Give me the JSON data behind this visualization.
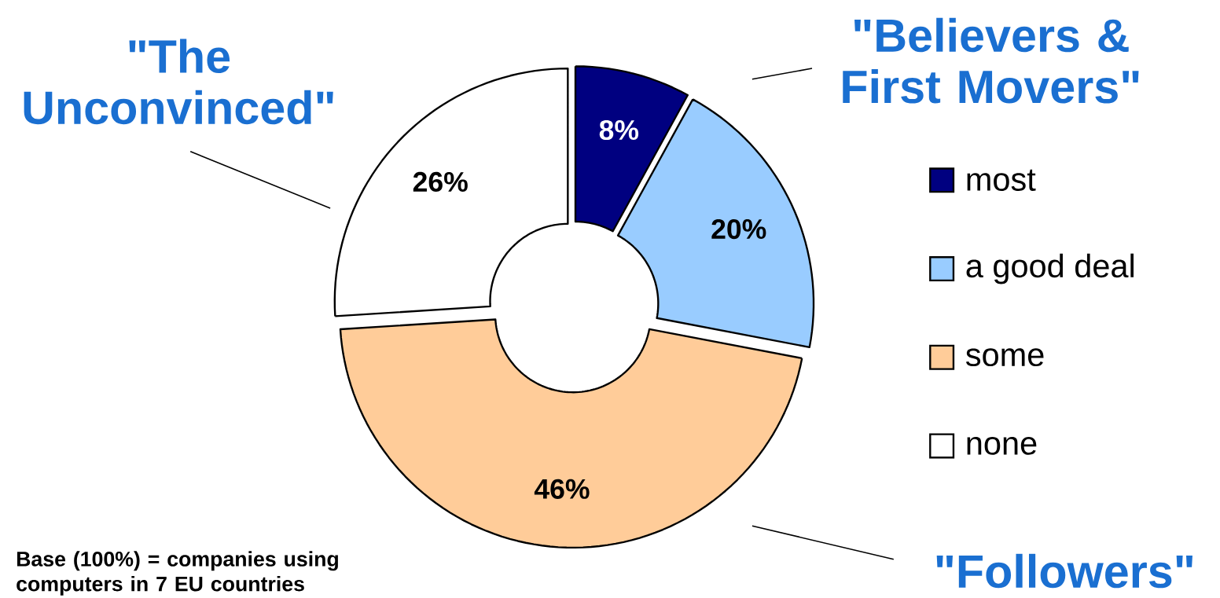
{
  "chart_data": {
    "type": "donut",
    "categories": [
      "most",
      "a good deal",
      "some",
      "none"
    ],
    "values": [
      8,
      20,
      46,
      26
    ],
    "colors": [
      "#000080",
      "#99ccff",
      "#ffcc99",
      "#ffffff"
    ],
    "value_labels": [
      "8%",
      "20%",
      "46%",
      "26%"
    ],
    "legend": "right",
    "annotations": [
      "\"Believers & First Movers\"",
      "\"Followers\"",
      "\"The Unconvinced\"",
      "Base (100%) = companies using computers in 7 EU countries"
    ]
  }
}
